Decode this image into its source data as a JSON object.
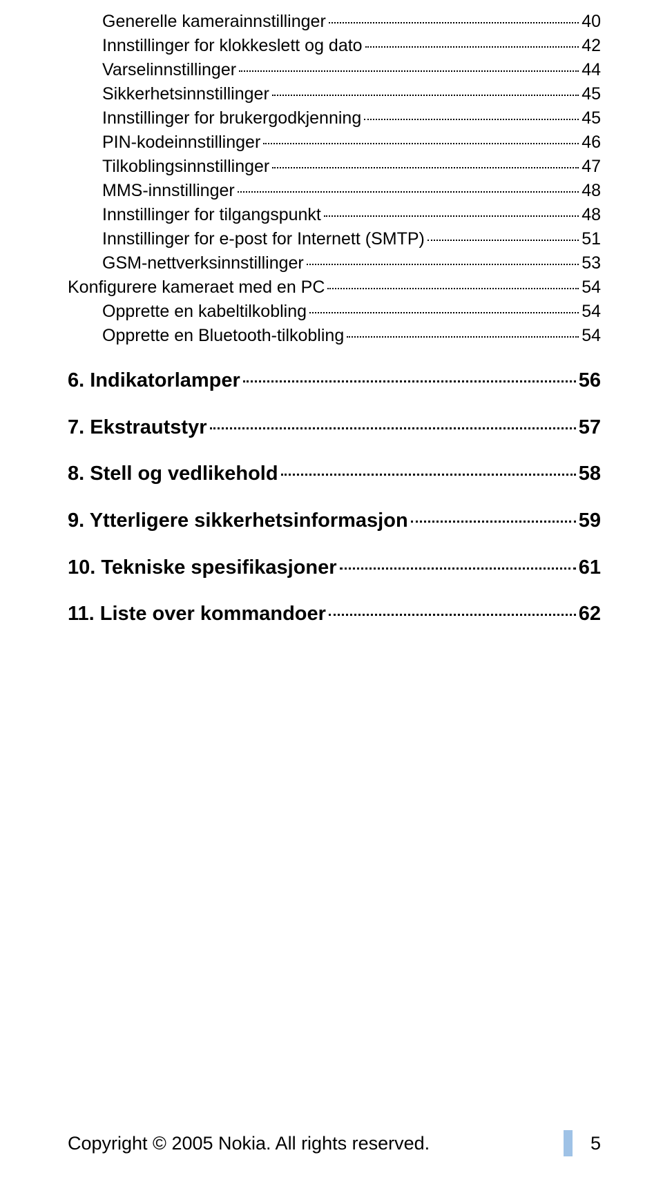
{
  "toc": [
    {
      "level": 3,
      "label": "Generelle kamerainnstillinger",
      "page": "40"
    },
    {
      "level": 3,
      "label": "Innstillinger for klokkeslett og dato",
      "page": "42"
    },
    {
      "level": 3,
      "label": "Varselinnstillinger",
      "page": "44"
    },
    {
      "level": 3,
      "label": "Sikkerhetsinnstillinger",
      "page": "45"
    },
    {
      "level": 3,
      "label": "Innstillinger for brukergodkjenning",
      "page": "45"
    },
    {
      "level": 3,
      "label": "PIN-kodeinnstillinger",
      "page": "46"
    },
    {
      "level": 3,
      "label": "Tilkoblingsinnstillinger",
      "page": "47"
    },
    {
      "level": 3,
      "label": "MMS-innstillinger",
      "page": "48"
    },
    {
      "level": 3,
      "label": "Innstillinger for tilgangspunkt",
      "page": "48"
    },
    {
      "level": 3,
      "label": "Innstillinger for e-post for Internett (SMTP)",
      "page": "51"
    },
    {
      "level": 3,
      "label": "GSM-nettverksinnstillinger",
      "page": "53"
    },
    {
      "level": 2,
      "label": "Konfigurere kameraet med en PC",
      "page": "54"
    },
    {
      "level": 3,
      "label": "Opprette en kabeltilkobling",
      "page": "54"
    },
    {
      "level": 3,
      "label": "Opprette en Bluetooth-tilkobling",
      "page": "54"
    },
    {
      "level": 1,
      "label": "6. Indikatorlamper",
      "page": "56"
    },
    {
      "level": 1,
      "label": "7. Ekstrautstyr",
      "page": "57"
    },
    {
      "level": 1,
      "label": "8. Stell og vedlikehold",
      "page": "58"
    },
    {
      "level": 1,
      "label": "9. Ytterligere sikkerhetsinformasjon",
      "page": "59"
    },
    {
      "level": 1,
      "label": "10. Tekniske spesifikasjoner",
      "page": "61"
    },
    {
      "level": 1,
      "label": "11. Liste over kommandoer",
      "page": "62"
    }
  ],
  "footer": {
    "copyright": "Copyright © 2005 Nokia. All rights reserved.",
    "page_number": "5"
  },
  "colors": {
    "accent_bar": "#9fc2e6",
    "text": "#000000",
    "background": "#ffffff"
  }
}
